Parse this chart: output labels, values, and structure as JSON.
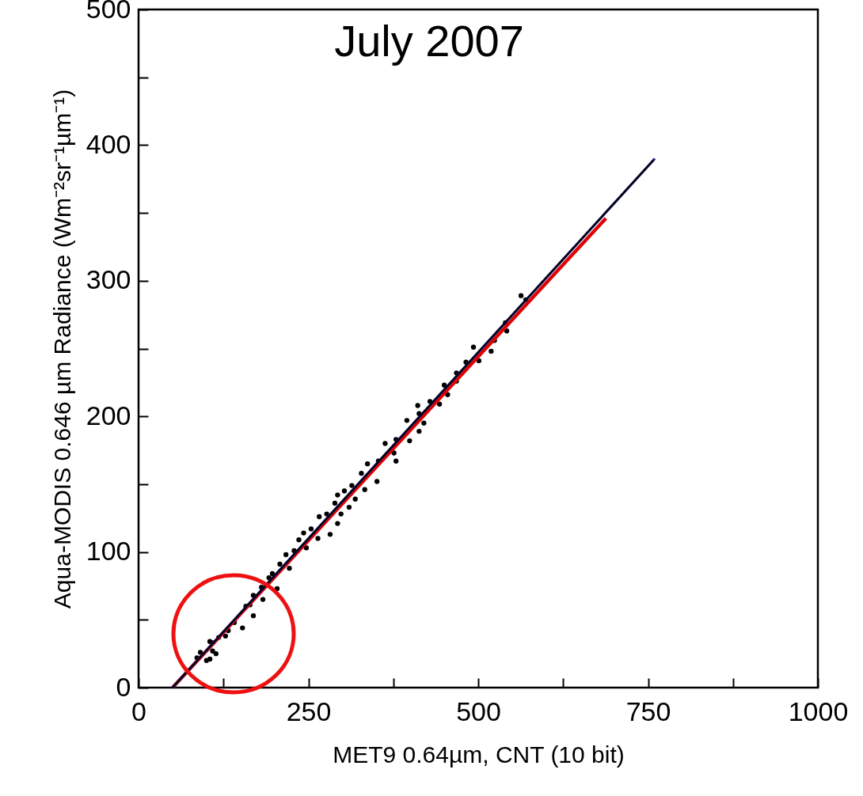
{
  "chart_data": {
    "type": "scatter",
    "title": "July 2007",
    "xlabel": "MET9  0.64µm, CNT (10 bit)",
    "ylabel": "Aqua-MODIS 0.646 µm Radiance (Wm⁻²sr⁻¹µm⁻¹)",
    "xlim": [
      0,
      1000
    ],
    "ylim": [
      0,
      500
    ],
    "xticks": [
      0,
      {
        "value": 125,
        "label": null
      },
      250,
      {
        "value": 375,
        "label": null
      },
      500,
      {
        "value": 625,
        "label": null
      },
      750,
      {
        "value": 875,
        "label": null
      },
      1000
    ],
    "yticks": [
      0,
      {
        "value": 50,
        "label": null
      },
      100,
      {
        "value": 150,
        "label": null
      },
      200,
      {
        "value": 250,
        "label": null
      },
      300,
      {
        "value": 350,
        "label": null
      },
      400,
      {
        "value": 450,
        "label": null
      },
      500
    ],
    "grid": false,
    "series": [
      {
        "color": "#000000",
        "marker": "circle",
        "x": [
          563,
          570,
          540,
          542,
          524,
          519,
          493,
          501,
          482,
          468,
          468,
          450,
          455,
          443,
          429,
          411,
          413,
          420,
          395,
          399,
          413,
          379,
          363,
          376,
          379,
          353,
          337,
          328,
          351,
          333,
          314,
          303,
          319,
          293,
          289,
          310,
          298,
          277,
          266,
          282,
          293,
          254,
          243,
          264,
          236,
          247,
          229,
          217,
          222,
          208,
          197,
          204,
          192,
          181,
          169,
          183,
          164,
          158,
          169,
          153,
          141,
          132,
          118,
          109,
          105,
          114,
          100,
          91,
          86,
          109,
          128,
          105
        ],
        "values": [
          289,
          286,
          269,
          263,
          256,
          248,
          251,
          241,
          240,
          232,
          226,
          223,
          216,
          209,
          211,
          208,
          202,
          195,
          197,
          182,
          189,
          183,
          180,
          173,
          167,
          167,
          165,
          158,
          152,
          146,
          149,
          145,
          139,
          142,
          136,
          133,
          128,
          128,
          126,
          113,
          121,
          117,
          114,
          110,
          109,
          103,
          101,
          98,
          88,
          91,
          84,
          73,
          81,
          74,
          68,
          65,
          61,
          60,
          53,
          44,
          48,
          42,
          37,
          33,
          34,
          25,
          20,
          26,
          22,
          27,
          38,
          21
        ]
      },
      {
        "type": "line",
        "marker": "none",
        "color": "#e00000",
        "x": [
          50,
          688
        ],
        "values": [
          0,
          346
        ]
      },
      {
        "type": "line",
        "marker": "none",
        "color": "#1c1c8a",
        "x": [
          50,
          760
        ],
        "values": [
          0,
          390
        ]
      },
      {
        "type": "line",
        "marker": "none",
        "color": "#000000",
        "x": [
          50,
          758
        ],
        "values": [
          0,
          389
        ]
      }
    ]
  }
}
